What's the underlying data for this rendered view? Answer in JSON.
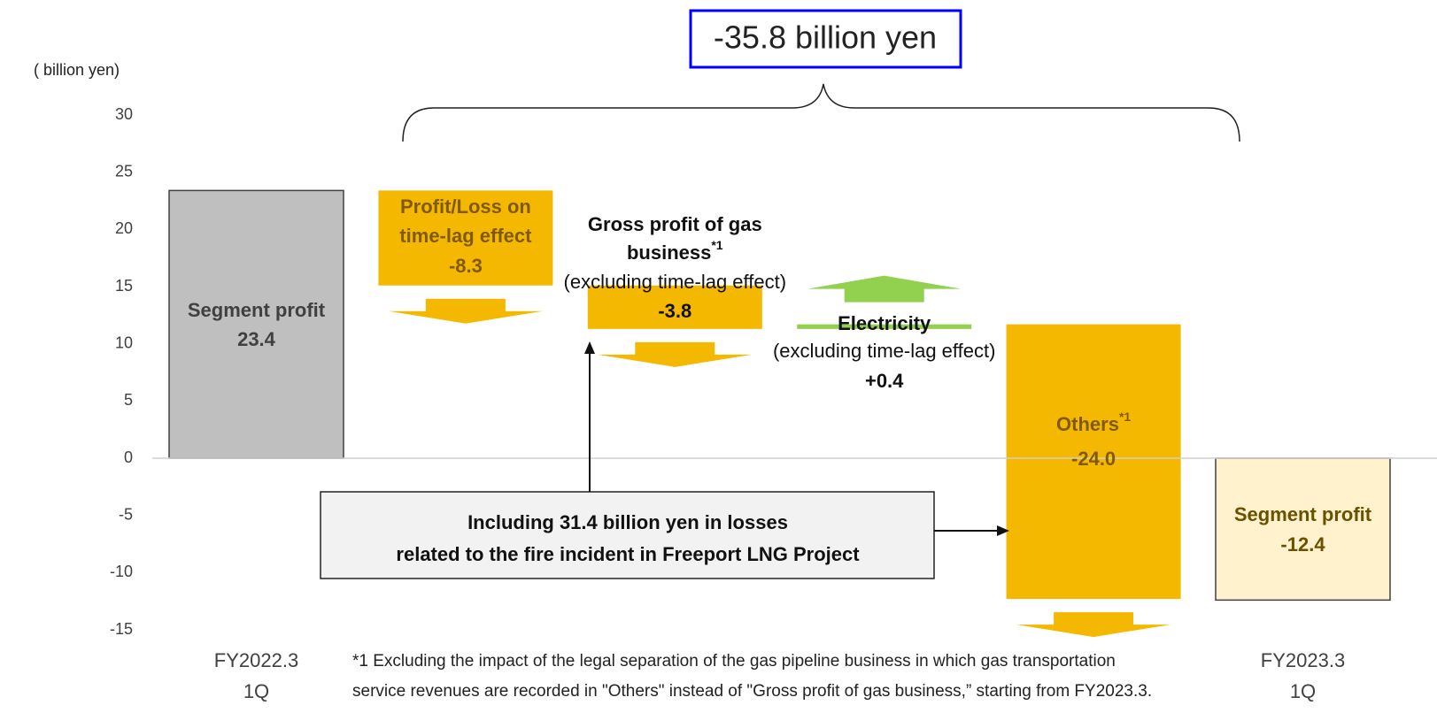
{
  "chart_data": {
    "type": "waterfall",
    "y_label": "( billion yen)",
    "categories": [
      [
        "FY2022.3",
        "1Q"
      ],
      null,
      null,
      null,
      null,
      [
        "FY2023.3",
        "1Q"
      ]
    ],
    "labels": [
      [
        "Segment profit"
      ],
      [
        "Profit/Loss on",
        "time-lag effect"
      ],
      [
        "Gross profit of gas",
        "business"
      ],
      [
        "Electricity"
      ],
      [
        "Others"
      ],
      [
        "Segment profit"
      ]
    ],
    "label_notes": [
      null,
      null,
      "*1",
      null,
      "*1",
      null
    ],
    "sublabels": [
      null,
      null,
      "(excluding time-lag effect)",
      "(excluding time-lag effect)",
      null,
      null
    ],
    "values": [
      23.4,
      -8.3,
      -3.8,
      0.4,
      -24.0,
      -12.4
    ],
    "value_labels": [
      "23.4",
      "-8.3",
      "-3.8",
      "+0.4",
      "-24.0",
      "-12.4"
    ],
    "measure": [
      "absolute",
      "relative",
      "relative",
      "relative",
      "relative",
      "absolute"
    ],
    "colors": [
      "#bfbfbf",
      "#f5b800",
      "#f5b800",
      "#92d050",
      "#f5b800",
      "#fff2cc"
    ],
    "edge_colors": [
      "#404040",
      null,
      null,
      null,
      null,
      "#404040"
    ],
    "ylim": [
      -15,
      30
    ],
    "yticks": [
      -15,
      -10,
      -5,
      0,
      5,
      10,
      15,
      20,
      25,
      30
    ],
    "grid": false,
    "total_change": {
      "value": -35.8,
      "label": "-35.8 billion yen"
    },
    "callout": [
      "Including 31.4 billion yen in losses",
      "related to the fire incident in Freeport LNG Project"
    ],
    "footnote": [
      "*1 Excluding the impact of  the legal separation of the gas pipeline business in which gas transportation",
      "service revenues are recorded in \"Others\" instead of \"Gross profit of gas business,” starting from FY2023.3."
    ]
  }
}
